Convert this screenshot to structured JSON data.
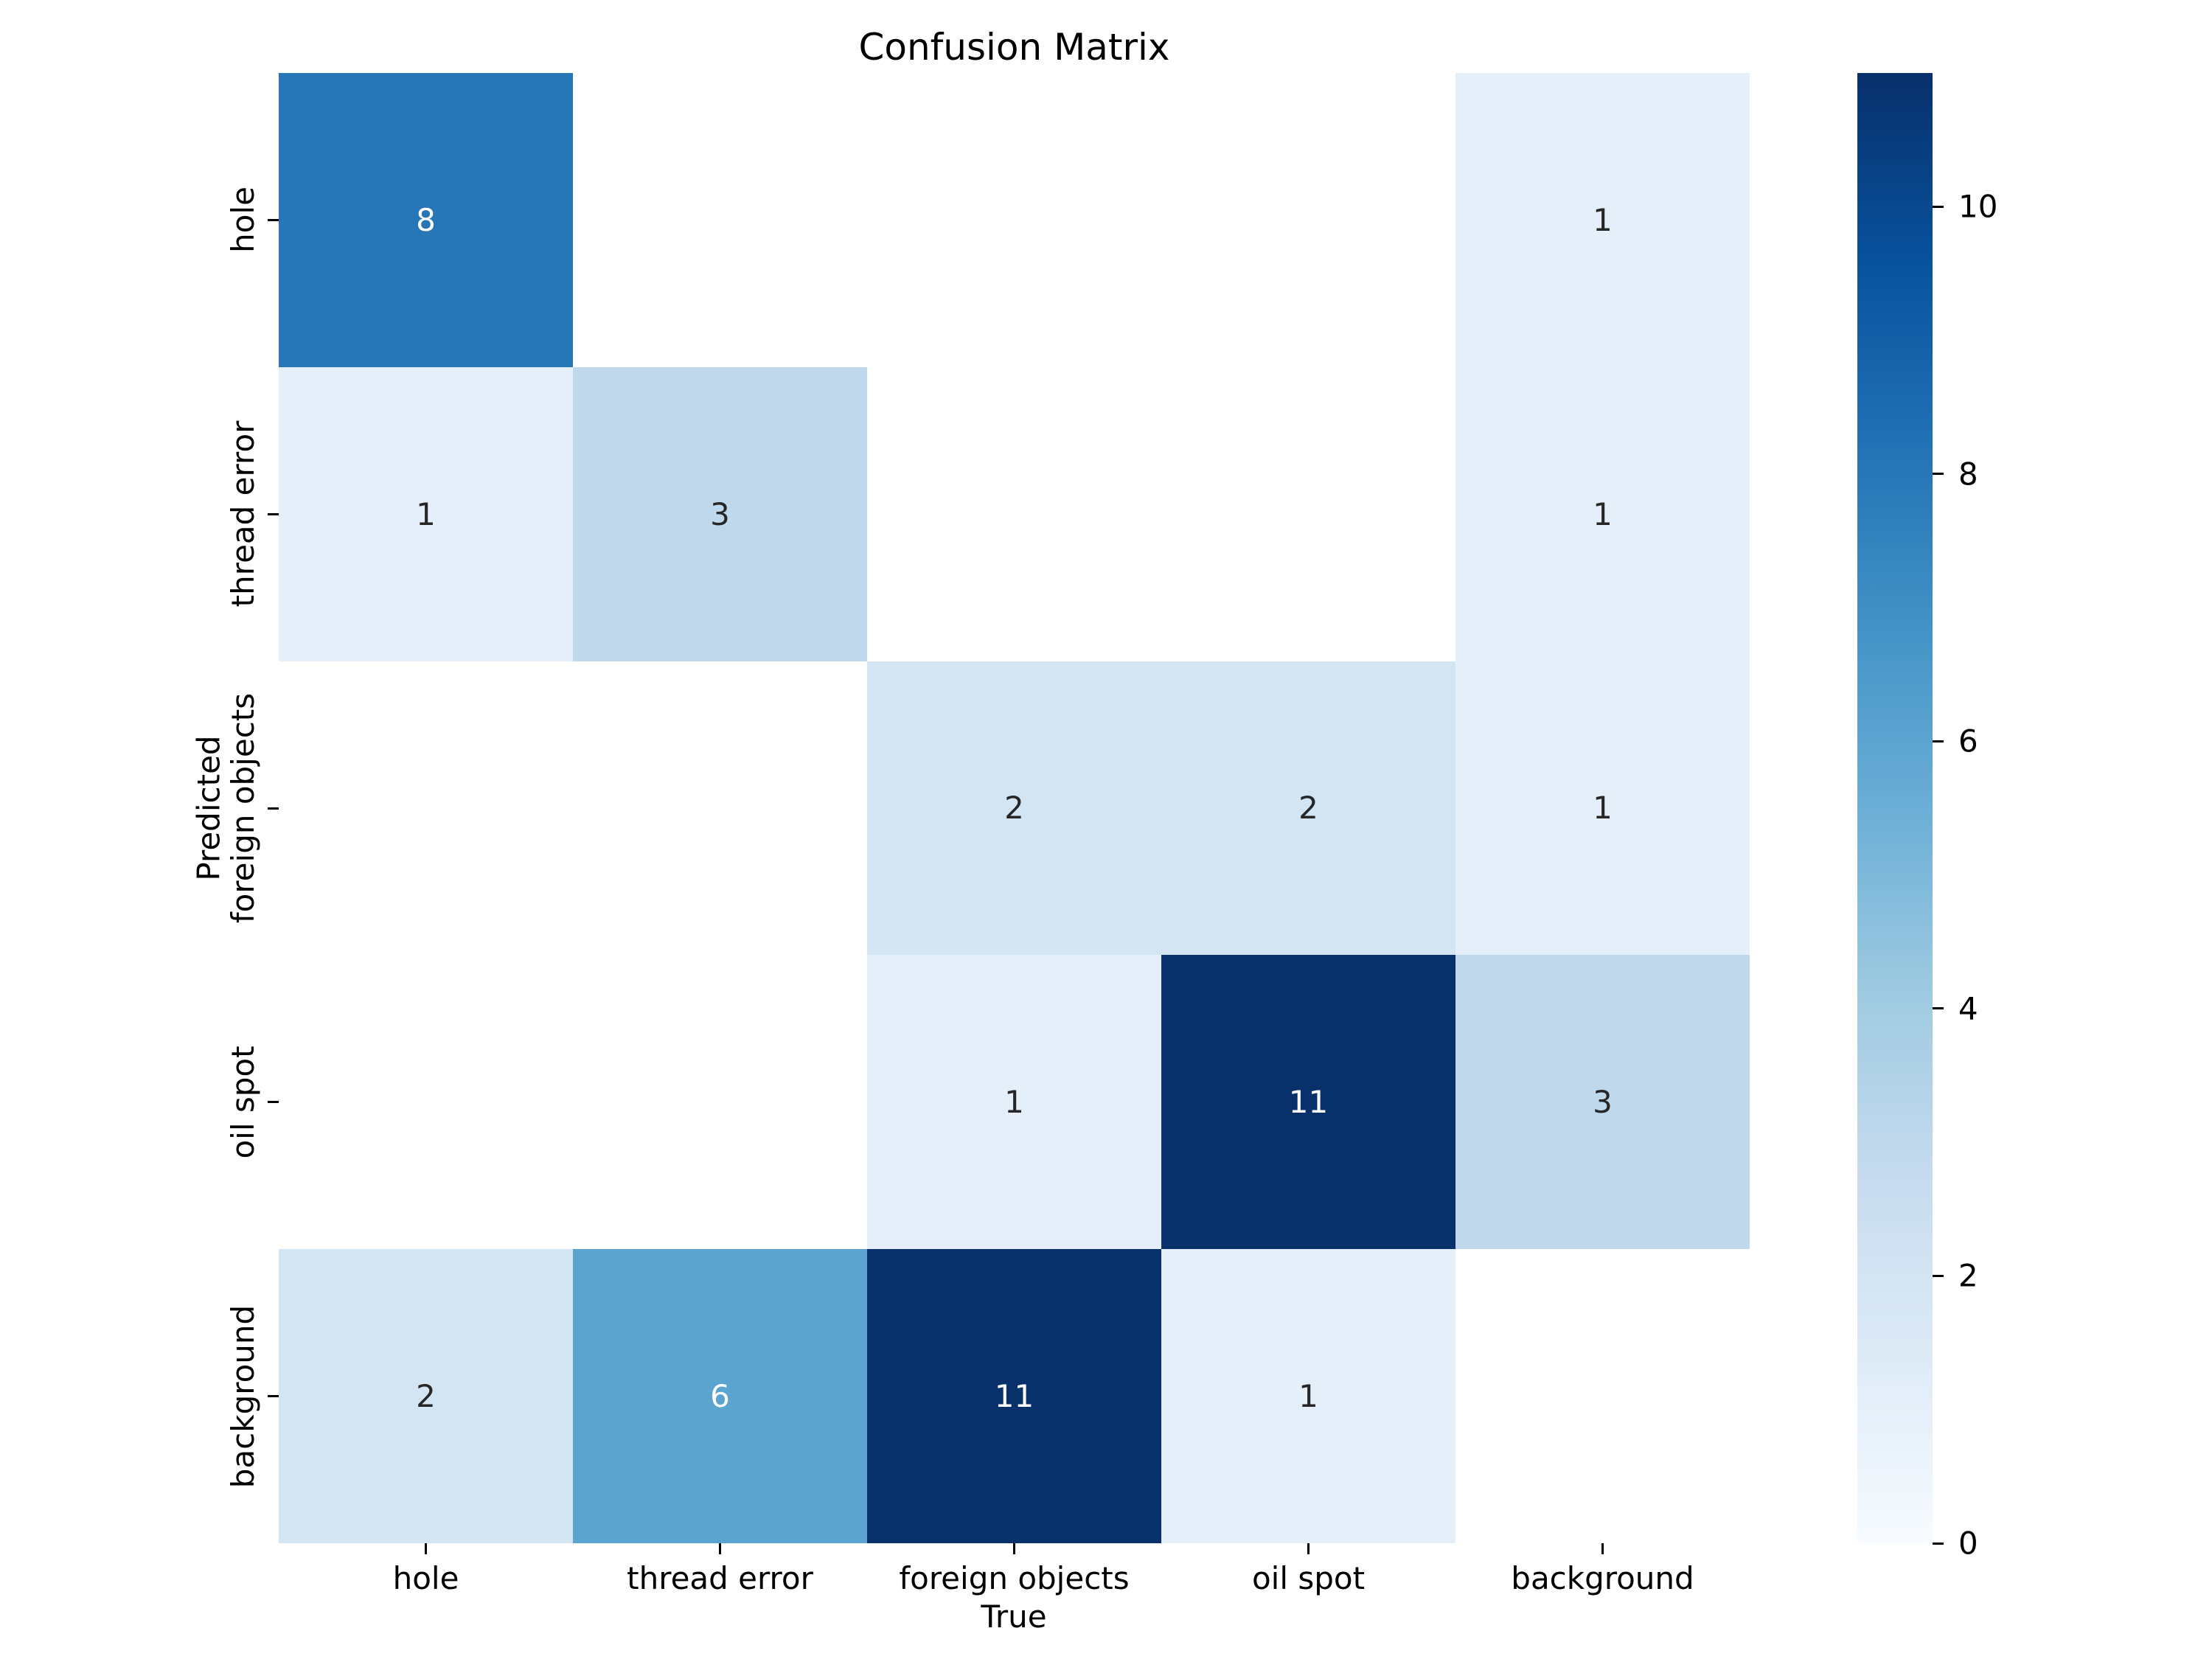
{
  "title": "Confusion Matrix",
  "chart_data": {
    "type": "heatmap",
    "title": "Confusion Matrix",
    "xlabel": "True",
    "ylabel": "Predicted",
    "x_categories": [
      "hole",
      "thread error",
      "foreign objects",
      "oil spot",
      "background"
    ],
    "y_categories": [
      "hole",
      "thread error",
      "foreign objects",
      "oil spot",
      "background"
    ],
    "matrix": [
      [
        8,
        null,
        null,
        null,
        1
      ],
      [
        1,
        3,
        null,
        null,
        1
      ],
      [
        null,
        null,
        2,
        2,
        1
      ],
      [
        null,
        null,
        1,
        11,
        3
      ],
      [
        2,
        6,
        11,
        1,
        null
      ]
    ],
    "vmin": 0,
    "vmax": 11,
    "colormap": "Blues",
    "colorbar_ticks": [
      0,
      2,
      4,
      6,
      8,
      10
    ],
    "legend_position": "right-colorbar",
    "grid": false
  },
  "colors": {
    "value_to_color": {
      "1": "#e5eff9",
      "2": "#d3e4f3",
      "3": "#bfd8ec",
      "6": "#5ca4d0",
      "8": "#2777b8",
      "11": "#08306b"
    },
    "empty_cell": "#ffffff",
    "annotation_dark": "#262626",
    "annotation_light": "#ffffff",
    "axis_text": "#000000",
    "colorbar_gradient_bottom_to_top": [
      "#f7fbff",
      "#deebf7",
      "#c6dbef",
      "#9ecae1",
      "#6baed6",
      "#4292c6",
      "#2171b5",
      "#08519c",
      "#08306b"
    ]
  }
}
